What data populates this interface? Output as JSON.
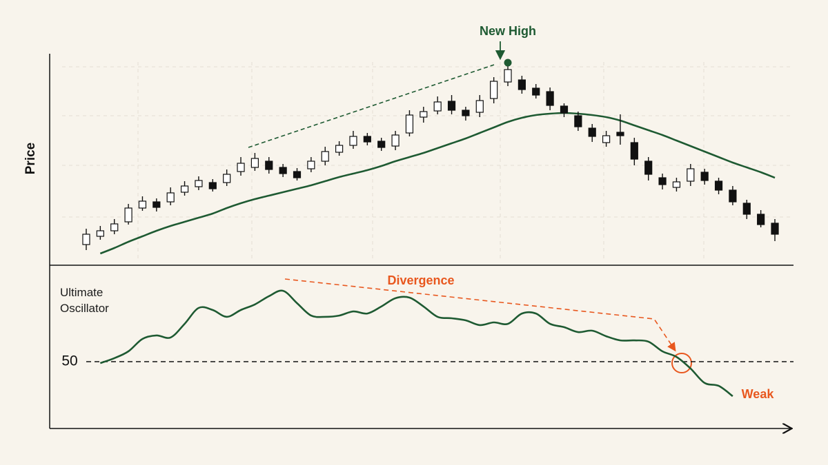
{
  "chart_data": [
    {
      "type": "candlestick",
      "ylabel": "Price",
      "categories": [
        null,
        null,
        null,
        null,
        null,
        null,
        null,
        null,
        null,
        null,
        null,
        null,
        null,
        null,
        null,
        null,
        null,
        null,
        null,
        null,
        null,
        null,
        null,
        null,
        null,
        null,
        null,
        null,
        null,
        null,
        null,
        null,
        null,
        null,
        null,
        null,
        null,
        null,
        null,
        null,
        null,
        null,
        null,
        null,
        null,
        null,
        null,
        null,
        null,
        null
      ],
      "open": [
        30,
        42,
        50,
        63,
        83,
        92,
        92,
        106,
        114,
        120,
        120,
        136,
        142,
        151,
        142,
        136,
        140,
        151,
        164,
        174,
        187,
        180,
        173,
        192,
        215,
        224,
        238,
        225,
        222,
        242,
        266,
        269,
        257,
        252,
        231,
        217,
        199,
        178,
        193,
        178,
        151,
        127,
        113,
        122,
        135,
        122,
        109,
        90,
        74,
        61
      ],
      "high": [
        53,
        57,
        67,
        89,
        100,
        97,
        113,
        122,
        129,
        125,
        139,
        157,
        163,
        157,
        147,
        141,
        157,
        172,
        180,
        195,
        192,
        185,
        195,
        225,
        230,
        245,
        247,
        230,
        247,
        273,
        290,
        275,
        263,
        258,
        235,
        223,
        205,
        195,
        219,
        185,
        157,
        133,
        127,
        147,
        140,
        127,
        115,
        95,
        80,
        67
      ],
      "low": [
        22,
        37,
        45,
        59,
        79,
        78,
        87,
        101,
        109,
        107,
        115,
        130,
        137,
        133,
        128,
        123,
        135,
        145,
        159,
        169,
        174,
        166,
        167,
        187,
        207,
        219,
        219,
        210,
        215,
        235,
        260,
        249,
        242,
        225,
        215,
        195,
        179,
        172,
        175,
        145,
        123,
        110,
        107,
        115,
        117,
        103,
        87,
        67,
        55,
        35
      ],
      "close": [
        45,
        50,
        60,
        83,
        93,
        84,
        105,
        115,
        123,
        111,
        132,
        148,
        155,
        139,
        133,
        127,
        151,
        165,
        174,
        187,
        179,
        171,
        189,
        218,
        223,
        237,
        225,
        217,
        239,
        267,
        284,
        255,
        247,
        232,
        221,
        201,
        187,
        188,
        188,
        154,
        132,
        117,
        121,
        140,
        123,
        109,
        92,
        74,
        59,
        45
      ],
      "up_color": "#ffffff",
      "down_color": "#111111",
      "line_series": [
        {
          "color": "#1e5a32",
          "values": [
            null,
            17,
            25,
            34,
            42,
            50,
            57,
            63,
            69,
            75,
            83,
            90,
            96,
            101,
            106,
            111,
            116,
            122,
            128,
            133,
            138,
            144,
            151,
            157,
            163,
            170,
            177,
            184,
            192,
            200,
            208,
            214,
            218,
            220,
            221,
            220,
            218,
            215,
            210,
            203,
            196,
            189,
            181,
            173,
            165,
            157,
            149,
            142,
            135,
            127
          ]
        }
      ],
      "ylim": [
        0,
        310
      ],
      "annotations": [
        {
          "text": "New High",
          "color": "#1e5a32"
        }
      ]
    },
    {
      "type": "line",
      "ylabel": "Ultimate Oscillator",
      "categories": [
        null,
        null,
        null,
        null,
        null,
        null,
        null,
        null,
        null,
        null,
        null,
        null,
        null,
        null,
        null,
        null,
        null,
        null,
        null,
        null,
        null,
        null,
        null,
        null,
        null,
        null,
        null,
        null,
        null,
        null,
        null,
        null,
        null,
        null,
        null,
        null,
        null,
        null,
        null,
        null,
        null,
        null,
        null,
        null,
        null,
        null,
        null,
        null,
        null,
        null
      ],
      "series": [
        {
          "color": "#1e5a32",
          "values": [
            null,
            49.3,
            51.7,
            55,
            61,
            62.7,
            61.7,
            68.3,
            76,
            75,
            71.7,
            75,
            77.7,
            81.7,
            84.3,
            78.3,
            72.3,
            71.7,
            72.3,
            74.3,
            73.3,
            76.7,
            80.7,
            81,
            76.7,
            71.7,
            71,
            70,
            67.7,
            69,
            68.3,
            73.3,
            73.3,
            68.3,
            66.7,
            64.3,
            65,
            62.3,
            60.3,
            60.3,
            59.7,
            55,
            52.3,
            46.7,
            39.7,
            38.3,
            33.3,
            null,
            null,
            null
          ]
        }
      ],
      "ylim": [
        20,
        95
      ],
      "yticks": [
        50
      ],
      "annotations": [
        {
          "text": "Divergence",
          "color": "#e8571e"
        },
        {
          "text": "Weak",
          "color": "#e8571e"
        }
      ]
    }
  ]
}
